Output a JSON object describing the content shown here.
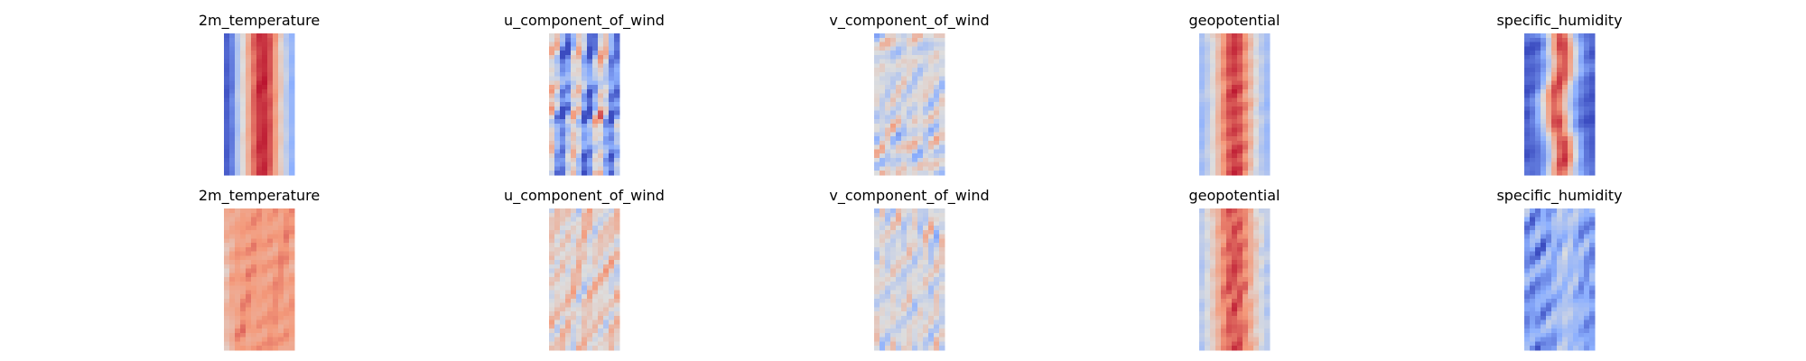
{
  "chart_data": {
    "type": "heatmap",
    "layout": {
      "rows": 2,
      "cols": 5
    },
    "colormap": "coolwarm",
    "colormap_stops": [
      "#3b4cc0",
      "#8db0fe",
      "#dddddd",
      "#f49a7b",
      "#b40426"
    ],
    "axes_visible": false,
    "panels": [
      {
        "row": 0,
        "col": 0,
        "title": "2m_temperature",
        "pattern": "temperature_band"
      },
      {
        "row": 0,
        "col": 1,
        "title": "u_component_of_wind",
        "pattern": "u_wind_streaks"
      },
      {
        "row": 0,
        "col": 2,
        "title": "v_component_of_wind",
        "pattern": "v_wind_eddies"
      },
      {
        "row": 0,
        "col": 3,
        "title": "geopotential",
        "pattern": "geopotential_band"
      },
      {
        "row": 0,
        "col": 4,
        "title": "specific_humidity",
        "pattern": "humidity_core"
      },
      {
        "row": 1,
        "col": 0,
        "title": "2m_temperature",
        "pattern": "temperature_warm"
      },
      {
        "row": 1,
        "col": 1,
        "title": "u_component_of_wind",
        "pattern": "u_wind_mixed"
      },
      {
        "row": 1,
        "col": 2,
        "title": "v_component_of_wind",
        "pattern": "v_wind_eddies_2"
      },
      {
        "row": 1,
        "col": 3,
        "title": "geopotential",
        "pattern": "geopotential_band_2"
      },
      {
        "row": 1,
        "col": 4,
        "title": "specific_humidity",
        "pattern": "humidity_cool"
      }
    ]
  }
}
